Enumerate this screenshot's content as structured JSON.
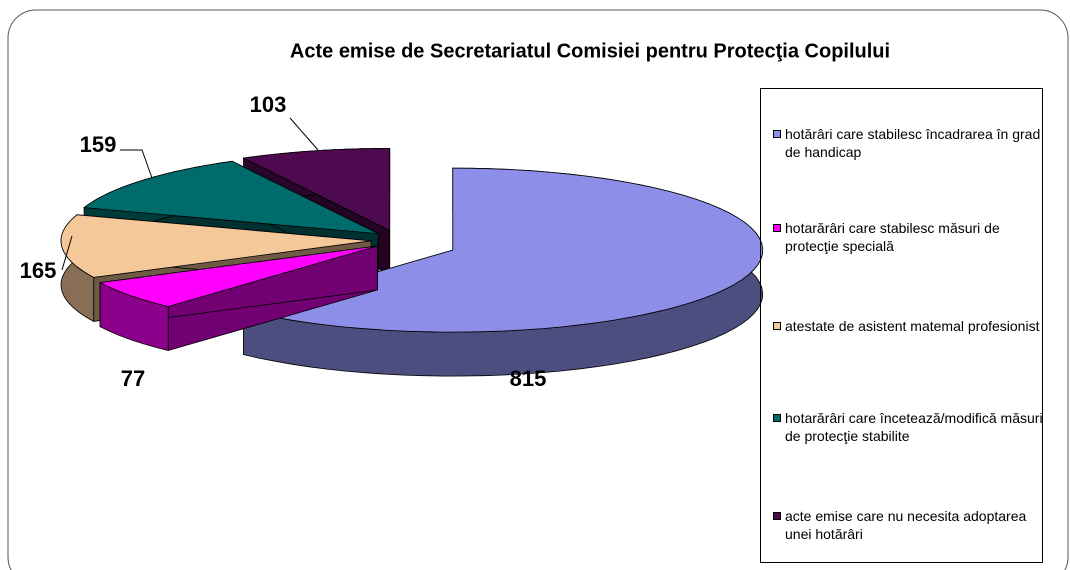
{
  "chart_data": {
    "type": "pie",
    "title": "Acte emise  de Secretariatul  Comisiei pentru  Protecţia  Copilului",
    "categories": [
      "hotărâri care stabilesc încadrarea în grad de handicap",
      "hotarărâri care stabilesc măsuri de protecţie specială",
      "atestate de asistent matemal profesionist",
      "hotarărâri care încetează/modifică măsuri de protecţie stabilite",
      "acte emise care nu necesita adoptarea unei hotărâri"
    ],
    "values": [
      815,
      77,
      165,
      159,
      103
    ],
    "colors": [
      "#8c8ee8",
      "#ff00ff",
      "#f5c89a",
      "#006b6b",
      "#4e0a4e"
    ]
  }
}
